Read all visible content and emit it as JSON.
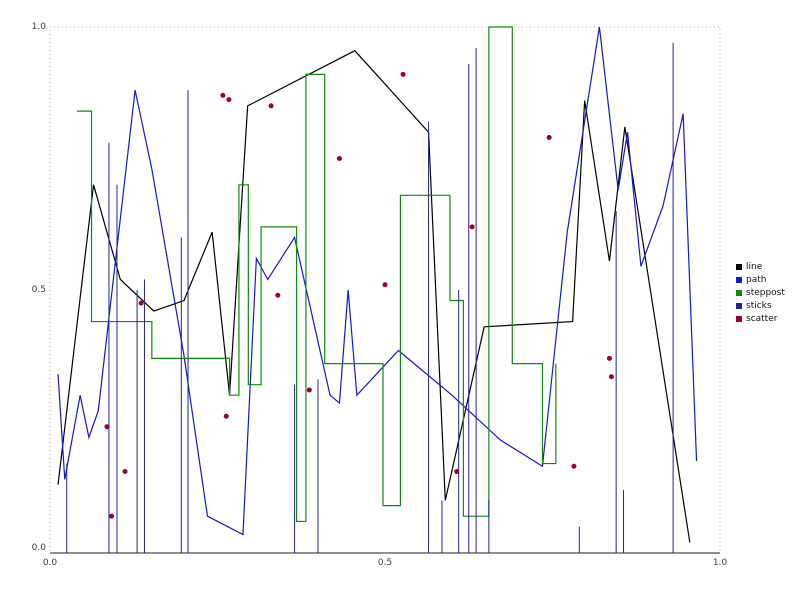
{
  "chart_data": {
    "type": "line",
    "title": "",
    "xlabel": "",
    "ylabel": "",
    "xlim": [
      0,
      1
    ],
    "ylim": [
      0,
      1
    ],
    "grid": false,
    "frame_style": "dotted",
    "axis_color": "#222222",
    "frame_color": "#b0b0b0",
    "legend_position": "right-outside",
    "x_ticks": [
      "0.0",
      "0.5",
      "1.0"
    ],
    "y_ticks": [
      "0.0",
      "0.5",
      "1.0"
    ],
    "series": [
      {
        "name": "line",
        "type": "line",
        "color": "#000000",
        "points": [
          [
            0.012,
            0.13
          ],
          [
            0.065,
            0.7
          ],
          [
            0.105,
            0.52
          ],
          [
            0.155,
            0.46
          ],
          [
            0.2,
            0.48
          ],
          [
            0.242,
            0.61
          ],
          [
            0.268,
            0.3
          ],
          [
            0.295,
            0.85
          ],
          [
            0.455,
            0.955
          ],
          [
            0.565,
            0.8
          ],
          [
            0.59,
            0.1
          ],
          [
            0.648,
            0.43
          ],
          [
            0.78,
            0.44
          ],
          [
            0.798,
            0.86
          ],
          [
            0.835,
            0.555
          ],
          [
            0.858,
            0.81
          ],
          [
            0.955,
            0.02
          ]
        ]
      },
      {
        "name": "path",
        "type": "line",
        "color": "#1616cd",
        "points": [
          [
            0.012,
            0.34
          ],
          [
            0.022,
            0.14
          ],
          [
            0.045,
            0.3
          ],
          [
            0.058,
            0.22
          ],
          [
            0.072,
            0.27
          ],
          [
            0.127,
            0.88
          ],
          [
            0.152,
            0.73
          ],
          [
            0.2,
            0.375
          ],
          [
            0.235,
            0.07
          ],
          [
            0.288,
            0.035
          ],
          [
            0.308,
            0.56
          ],
          [
            0.325,
            0.52
          ],
          [
            0.365,
            0.6
          ],
          [
            0.418,
            0.3
          ],
          [
            0.432,
            0.285
          ],
          [
            0.445,
            0.5
          ],
          [
            0.458,
            0.3
          ],
          [
            0.52,
            0.385
          ],
          [
            0.6,
            0.3
          ],
          [
            0.672,
            0.215
          ],
          [
            0.735,
            0.165
          ],
          [
            0.772,
            0.61
          ],
          [
            0.82,
            1.0
          ],
          [
            0.848,
            0.69
          ],
          [
            0.862,
            0.8
          ],
          [
            0.882,
            0.545
          ],
          [
            0.915,
            0.66
          ],
          [
            0.945,
            0.835
          ],
          [
            0.965,
            0.175
          ]
        ]
      },
      {
        "name": "steppost",
        "type": "step-post",
        "color": "#118811",
        "points": [
          [
            0.04,
            0.84
          ],
          [
            0.062,
            0.44
          ],
          [
            0.152,
            0.37
          ],
          [
            0.268,
            0.3
          ],
          [
            0.282,
            0.7
          ],
          [
            0.296,
            0.32
          ],
          [
            0.315,
            0.62
          ],
          [
            0.368,
            0.06
          ],
          [
            0.382,
            0.91
          ],
          [
            0.41,
            0.36
          ],
          [
            0.497,
            0.09
          ],
          [
            0.523,
            0.68
          ],
          [
            0.597,
            0.48
          ],
          [
            0.617,
            0.07
          ],
          [
            0.655,
            1.0
          ],
          [
            0.69,
            0.36
          ],
          [
            0.735,
            0.17
          ],
          [
            0.755,
            0.36
          ]
        ]
      },
      {
        "name": "sticks",
        "type": "sticks",
        "color": "#23238e",
        "points": [
          [
            0.025,
            0.17
          ],
          [
            0.088,
            0.78
          ],
          [
            0.1,
            0.7
          ],
          [
            0.13,
            0.5
          ],
          [
            0.141,
            0.52
          ],
          [
            0.196,
            0.6
          ],
          [
            0.206,
            0.88
          ],
          [
            0.365,
            0.32
          ],
          [
            0.4,
            0.33
          ],
          [
            0.565,
            0.82
          ],
          [
            0.585,
            0.1
          ],
          [
            0.61,
            0.5
          ],
          [
            0.625,
            0.93
          ],
          [
            0.636,
            0.96
          ],
          [
            0.655,
            0.1
          ],
          [
            0.79,
            0.05
          ],
          [
            0.845,
            0.65
          ],
          [
            0.856,
            0.12
          ],
          [
            0.93,
            0.97
          ]
        ]
      },
      {
        "name": "scatter",
        "type": "scatter",
        "color": "#990033",
        "points": [
          [
            0.085,
            0.24
          ],
          [
            0.092,
            0.07
          ],
          [
            0.112,
            0.155
          ],
          [
            0.136,
            0.475
          ],
          [
            0.258,
            0.87
          ],
          [
            0.267,
            0.862
          ],
          [
            0.263,
            0.26
          ],
          [
            0.33,
            0.85
          ],
          [
            0.34,
            0.49
          ],
          [
            0.387,
            0.31
          ],
          [
            0.432,
            0.75
          ],
          [
            0.5,
            0.51
          ],
          [
            0.527,
            0.91
          ],
          [
            0.607,
            0.155
          ],
          [
            0.63,
            0.62
          ],
          [
            0.745,
            0.79
          ],
          [
            0.782,
            0.165
          ],
          [
            0.835,
            0.37
          ],
          [
            0.838,
            0.335
          ]
        ]
      }
    ]
  }
}
